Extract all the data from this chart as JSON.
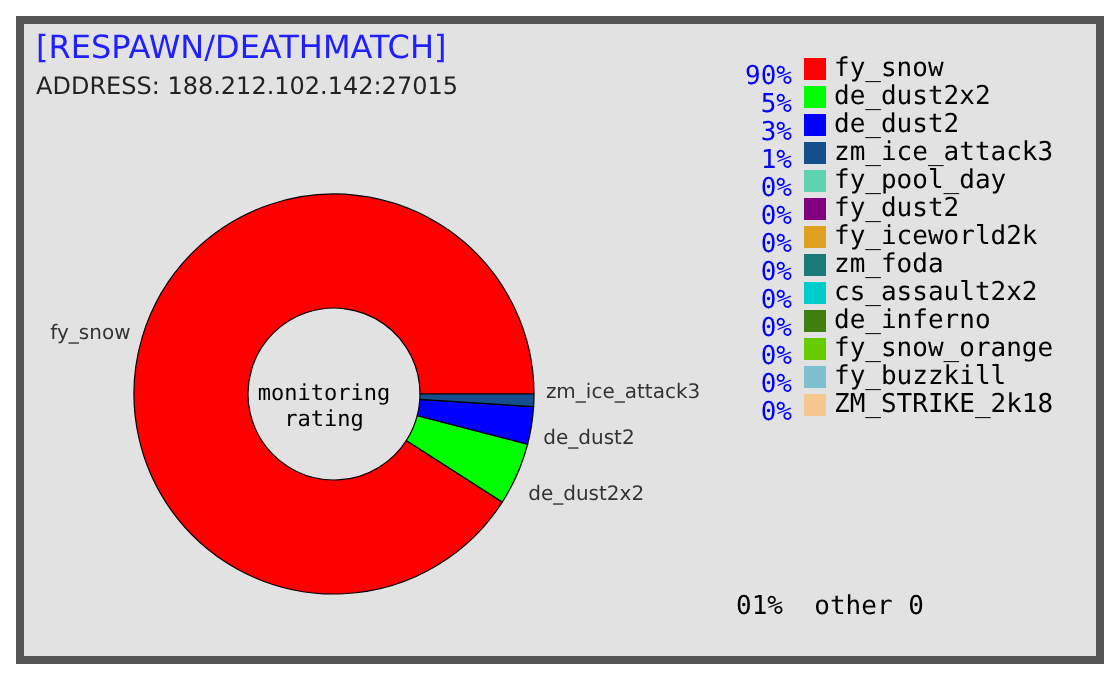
{
  "chart_data": {
    "type": "donut",
    "title": "[RESPAWN/DEATHMATCH]",
    "subtitle": "ADDRESS: 188.212.102.142:27015",
    "annotations": [
      "monitoring rating",
      "01%  other 0"
    ],
    "categories": [
      "fy_snow",
      "de_dust2x2",
      "de_dust2",
      "zm_ice_attack3",
      "fy_pool_day",
      "fy_dust2",
      "fy_iceworld2k",
      "zm_foda",
      "cs_assault2x2",
      "de_inferno",
      "fy_snow_orange",
      "fy_buzzkill",
      "ZM_STRIKE_2k18"
    ],
    "values": [
      90,
      5,
      3,
      1,
      0,
      0,
      0,
      0,
      0,
      0,
      0,
      0,
      0
    ],
    "value_labels": [
      "90%",
      "5%",
      "3%",
      "1%",
      "0%",
      "0%",
      "0%",
      "0%",
      "0%",
      "0%",
      "0%",
      "0%",
      "0%"
    ],
    "colors": [
      "#ff0000",
      "#00ff00",
      "#0000ff",
      "#144e8c",
      "#5fd3b0",
      "#800080",
      "#e0a020",
      "#1a7a7a",
      "#00cccc",
      "#3f7f0f",
      "#66cc00",
      "#7ec0d0",
      "#f5c890"
    ],
    "legend": "right"
  }
}
